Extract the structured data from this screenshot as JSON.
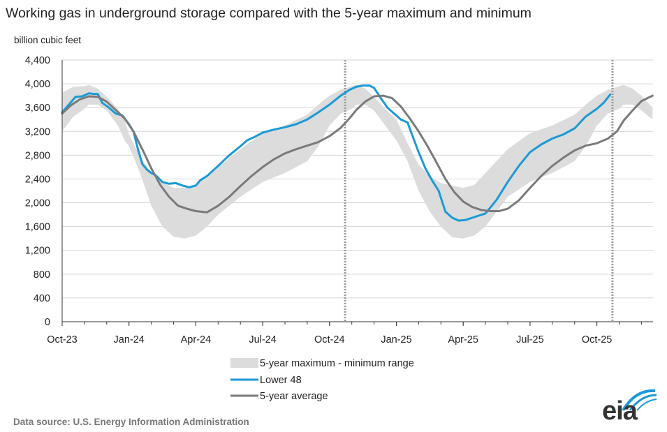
{
  "title": "Working gas in underground  storage compared with the 5-year maximum and minimum",
  "source": "Data source:  U.S. Energy Information Administration",
  "logo": "eia",
  "colors": {
    "lower48": "#1a9ad6",
    "avg": "#7a7a7a",
    "band": "#dcdcdc",
    "logo_arc": "#1a9ad6"
  },
  "chart_data": {
    "type": "line",
    "ylabel": "billion cubic feet",
    "ylim": [
      0,
      4400
    ],
    "yticks": [
      0,
      400,
      800,
      1200,
      1600,
      2000,
      2400,
      2800,
      3200,
      3600,
      4000,
      4400
    ],
    "ytick_labels": [
      "0",
      "400",
      "800",
      "1,200",
      "1,600",
      "2,000",
      "2,400",
      "2,800",
      "3,200",
      "3,600",
      "4,000",
      "4,400"
    ],
    "xtick_labels": [
      "Oct-23",
      "Jan-24",
      "Apr-24",
      "Jul-24",
      "Oct-24",
      "Jan-25",
      "Apr-25",
      "Jul-25",
      "Oct-25"
    ],
    "x_unit": "months since Oct-23",
    "xlim": [
      0,
      26.5
    ],
    "grid": "horizontal",
    "legend_position": "bottom-center",
    "vertical_markers": [
      12.7,
      24.7
    ],
    "series": [
      {
        "name": "5-year maximum - minimum range",
        "style": "band",
        "x": [
          0,
          0.5,
          1,
          1.2,
          1.6,
          2,
          2.5,
          2.8,
          3,
          3.5,
          4,
          4.5,
          5,
          5.5,
          6,
          6.5,
          7,
          8,
          9,
          10,
          11,
          11.5,
          12,
          12.5,
          13,
          13.2,
          13.6,
          14,
          14.5,
          15,
          15.5,
          16,
          16.5,
          17,
          17.5,
          18,
          18.5,
          19,
          20,
          21,
          22,
          23,
          23.5,
          24,
          24.5,
          25,
          25.2,
          25.6,
          26,
          26.5
        ],
        "upper": [
          3850,
          3950,
          3960,
          3980,
          3920,
          3780,
          3580,
          3400,
          3150,
          2780,
          2500,
          2350,
          2250,
          2250,
          2290,
          2450,
          2600,
          2900,
          3170,
          3300,
          3480,
          3650,
          3800,
          3900,
          3960,
          3980,
          3920,
          3780,
          3580,
          3400,
          3000,
          2640,
          2450,
          2330,
          2290,
          2250,
          2300,
          2500,
          2900,
          3170,
          3300,
          3480,
          3650,
          3800,
          3900,
          3960,
          3980,
          3920,
          3800,
          3600
        ],
        "lower": [
          3200,
          3450,
          3580,
          3650,
          3650,
          3550,
          3300,
          3050,
          2950,
          2500,
          1950,
          1600,
          1430,
          1400,
          1450,
          1600,
          1800,
          2100,
          2350,
          2500,
          2700,
          2950,
          3300,
          3500,
          3580,
          3650,
          3650,
          3550,
          3300,
          3050,
          2700,
          2200,
          1850,
          1600,
          1420,
          1400,
          1450,
          1600,
          2100,
          2350,
          2500,
          2700,
          2950,
          3300,
          3500,
          3580,
          3650,
          3650,
          3550,
          3400
        ]
      },
      {
        "name": "Lower 48",
        "style": "line",
        "x": [
          0,
          0.3,
          0.6,
          0.9,
          1.2,
          1.4,
          1.6,
          1.8,
          2.1,
          2.4,
          2.7,
          3.0,
          3.2,
          3.4,
          3.6,
          3.8,
          4.0,
          4.2,
          4.5,
          4.8,
          5.1,
          5.4,
          5.7,
          6.0,
          6.2,
          6.5,
          7.0,
          7.5,
          8.0,
          8.3,
          8.6,
          9.0,
          9.5,
          10.0,
          10.5,
          11.0,
          11.5,
          12.0,
          12.5,
          12.9,
          13.2,
          13.5,
          13.8,
          14.0,
          14.3,
          14.6,
          14.9,
          15.2,
          15.5,
          15.7,
          16.0,
          16.3,
          16.6,
          16.9,
          17.2,
          17.5,
          17.8,
          18.1,
          18.5,
          19.0,
          19.5,
          20.0,
          20.5,
          21.0,
          21.5,
          22.0,
          22.5,
          23.0,
          23.5,
          24.0,
          24.3,
          24.6
        ],
        "y": [
          3520,
          3650,
          3780,
          3790,
          3840,
          3830,
          3830,
          3680,
          3600,
          3500,
          3470,
          3320,
          3200,
          2900,
          2650,
          2560,
          2500,
          2460,
          2350,
          2320,
          2330,
          2290,
          2260,
          2290,
          2380,
          2450,
          2620,
          2800,
          2950,
          3050,
          3100,
          3180,
          3230,
          3270,
          3320,
          3400,
          3520,
          3650,
          3800,
          3900,
          3950,
          3970,
          3970,
          3930,
          3760,
          3600,
          3500,
          3400,
          3350,
          3150,
          2850,
          2580,
          2380,
          2200,
          1850,
          1750,
          1700,
          1710,
          1760,
          1820,
          2050,
          2350,
          2620,
          2850,
          2980,
          3080,
          3150,
          3250,
          3450,
          3580,
          3680,
          3820
        ]
      },
      {
        "name": "5-year average",
        "style": "line",
        "x": [
          0,
          0.4,
          0.8,
          1.2,
          1.6,
          2.0,
          2.4,
          2.8,
          3.2,
          3.6,
          4.0,
          4.4,
          4.8,
          5.2,
          5.6,
          6.0,
          6.5,
          7.0,
          7.5,
          8.0,
          8.5,
          9.0,
          9.5,
          10.0,
          10.5,
          11.0,
          11.5,
          12.0,
          12.5,
          12.9,
          13.2,
          13.6,
          14.0,
          14.4,
          14.8,
          15.2,
          15.6,
          16.0,
          16.4,
          16.8,
          17.2,
          17.6,
          18.0,
          18.4,
          18.8,
          19.2,
          19.6,
          20.0,
          20.5,
          21.0,
          21.5,
          22.0,
          22.5,
          23.0,
          23.5,
          24.0,
          24.5,
          24.9,
          25.2,
          25.6,
          26.0,
          26.5
        ],
        "y": [
          3500,
          3640,
          3740,
          3790,
          3780,
          3700,
          3560,
          3420,
          3200,
          2900,
          2580,
          2300,
          2100,
          1950,
          1900,
          1860,
          1840,
          1950,
          2100,
          2280,
          2450,
          2600,
          2730,
          2830,
          2900,
          2960,
          3020,
          3120,
          3260,
          3420,
          3560,
          3700,
          3790,
          3800,
          3760,
          3620,
          3420,
          3200,
          2950,
          2680,
          2400,
          2180,
          2020,
          1930,
          1880,
          1860,
          1860,
          1900,
          2040,
          2250,
          2450,
          2620,
          2760,
          2880,
          2960,
          3000,
          3080,
          3200,
          3380,
          3550,
          3710,
          3800
        ]
      }
    ]
  }
}
